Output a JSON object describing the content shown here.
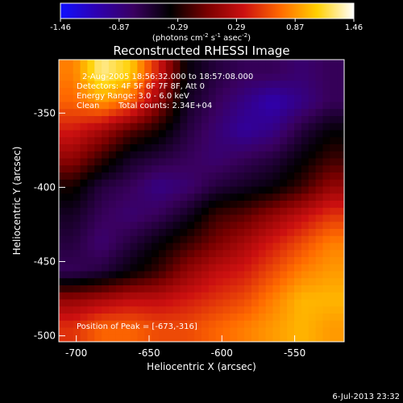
{
  "colorbar": {
    "ticks": [
      "-1.46",
      "-0.87",
      "-0.29",
      "0.29",
      "0.87",
      "1.46"
    ],
    "unit_main": "(photons cm",
    "unit_sup1": "-2",
    "unit_s": " s",
    "unit_sup2": "-1",
    "unit_asec": " asec",
    "unit_sup3": "-2",
    "unit_close": ")",
    "colors": [
      "#1010ff",
      "#2e00b0",
      "#3a0060",
      "#000000",
      "#7a0000",
      "#cc1010",
      "#ff6a00",
      "#ffd000",
      "#ffffff"
    ]
  },
  "chart_data": {
    "type": "heatmap",
    "title": "Reconstructed RHESSI Image",
    "annotations": {
      "line1": "2-Aug-2005 18:56:32.000 to 18:57:08.000",
      "line2": "Detectors: 4F 5F 6F 7F 8F, Att 0",
      "line3": "Energy Range: 3.0 - 6.0 keV",
      "line4_a": "Clean",
      "line4_b": "Total counts: 2.34E+04",
      "peak": "Position of Peak = [-673,-316]"
    },
    "xlabel": "Heliocentric X (arcsec)",
    "ylabel": "Heliocentric Y (arcsec)",
    "x_ticks": [
      "-700",
      "-650",
      "-600",
      "-550"
    ],
    "y_ticks": [
      "-350",
      "-400",
      "-450",
      "-500"
    ],
    "x_tick_values": [
      -700,
      -650,
      -600,
      -550
    ],
    "y_tick_values": [
      -350,
      -400,
      -450,
      -500
    ],
    "xlim": [
      -712,
      -516
    ],
    "ylim": [
      -504,
      -314
    ],
    "zlim": [
      -1.46,
      1.46
    ],
    "grid_x": [
      -705,
      -685,
      -665,
      -645,
      -625,
      -605,
      -585,
      -565,
      -545,
      -525
    ],
    "grid_y": [
      -319,
      -339,
      -359,
      -379,
      -399,
      -419,
      -439,
      -459,
      -479,
      -499
    ],
    "values": [
      [
        0.8,
        1.3,
        1.1,
        0.4,
        -0.4,
        -0.6,
        -0.7,
        -0.7,
        -0.8,
        -0.7
      ],
      [
        0.7,
        0.9,
        0.7,
        0.1,
        -0.5,
        -0.7,
        -0.9,
        -1.1,
        -0.9,
        -0.7
      ],
      [
        0.4,
        0.2,
        -0.1,
        -0.3,
        -0.6,
        -0.8,
        -1.0,
        -0.9,
        -0.6,
        -0.4
      ],
      [
        0.1,
        -0.2,
        -0.5,
        -0.6,
        -0.7,
        -0.8,
        -0.7,
        -0.6,
        -0.4,
        -0.2
      ],
      [
        -0.3,
        -0.6,
        -0.7,
        -0.9,
        -0.8,
        -0.6,
        -0.5,
        -0.4,
        -0.2,
        0.1
      ],
      [
        -0.5,
        -0.7,
        -0.8,
        -0.7,
        -0.5,
        -0.2,
        -0.1,
        0.1,
        0.3,
        0.5
      ],
      [
        -0.6,
        -0.8,
        -0.6,
        -0.4,
        -0.2,
        0.0,
        0.2,
        0.4,
        0.6,
        0.8
      ],
      [
        -0.7,
        -0.6,
        -0.4,
        -0.2,
        0.1,
        0.3,
        0.4,
        0.6,
        0.8,
        0.9
      ],
      [
        0.1,
        0.2,
        0.3,
        0.3,
        0.4,
        0.5,
        0.6,
        0.8,
        1.0,
        1.0
      ],
      [
        0.5,
        0.7,
        0.7,
        0.6,
        0.6,
        0.7,
        0.8,
        0.9,
        1.0,
        0.9
      ]
    ]
  },
  "timestamp": "6-Jul-2013 23:32"
}
